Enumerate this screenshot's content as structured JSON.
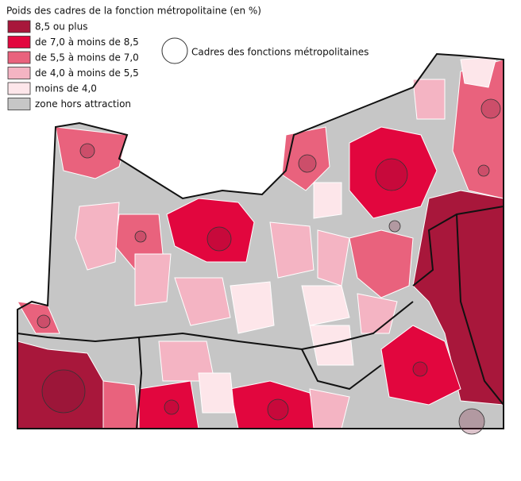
{
  "title": "Poids des cadres de la fonction métropolitaine (en %)",
  "legend": {
    "items": [
      {
        "label": "8,5 ou plus",
        "color": "#a8173b"
      },
      {
        "label": "de 7,0 à moins de 8,5",
        "color": "#e2063e"
      },
      {
        "label": "de 5,5 à moins de 7,0",
        "color": "#e9627d"
      },
      {
        "label": "de 4,0 à moins de 5,5",
        "color": "#f4b4c3"
      },
      {
        "label": "moins de 4,0",
        "color": "#fde6ea"
      },
      {
        "label": "zone hors attraction",
        "color": "#c6c6c6"
      }
    ],
    "circle_label": "Cadres des fonctions métropolitaines"
  }
}
